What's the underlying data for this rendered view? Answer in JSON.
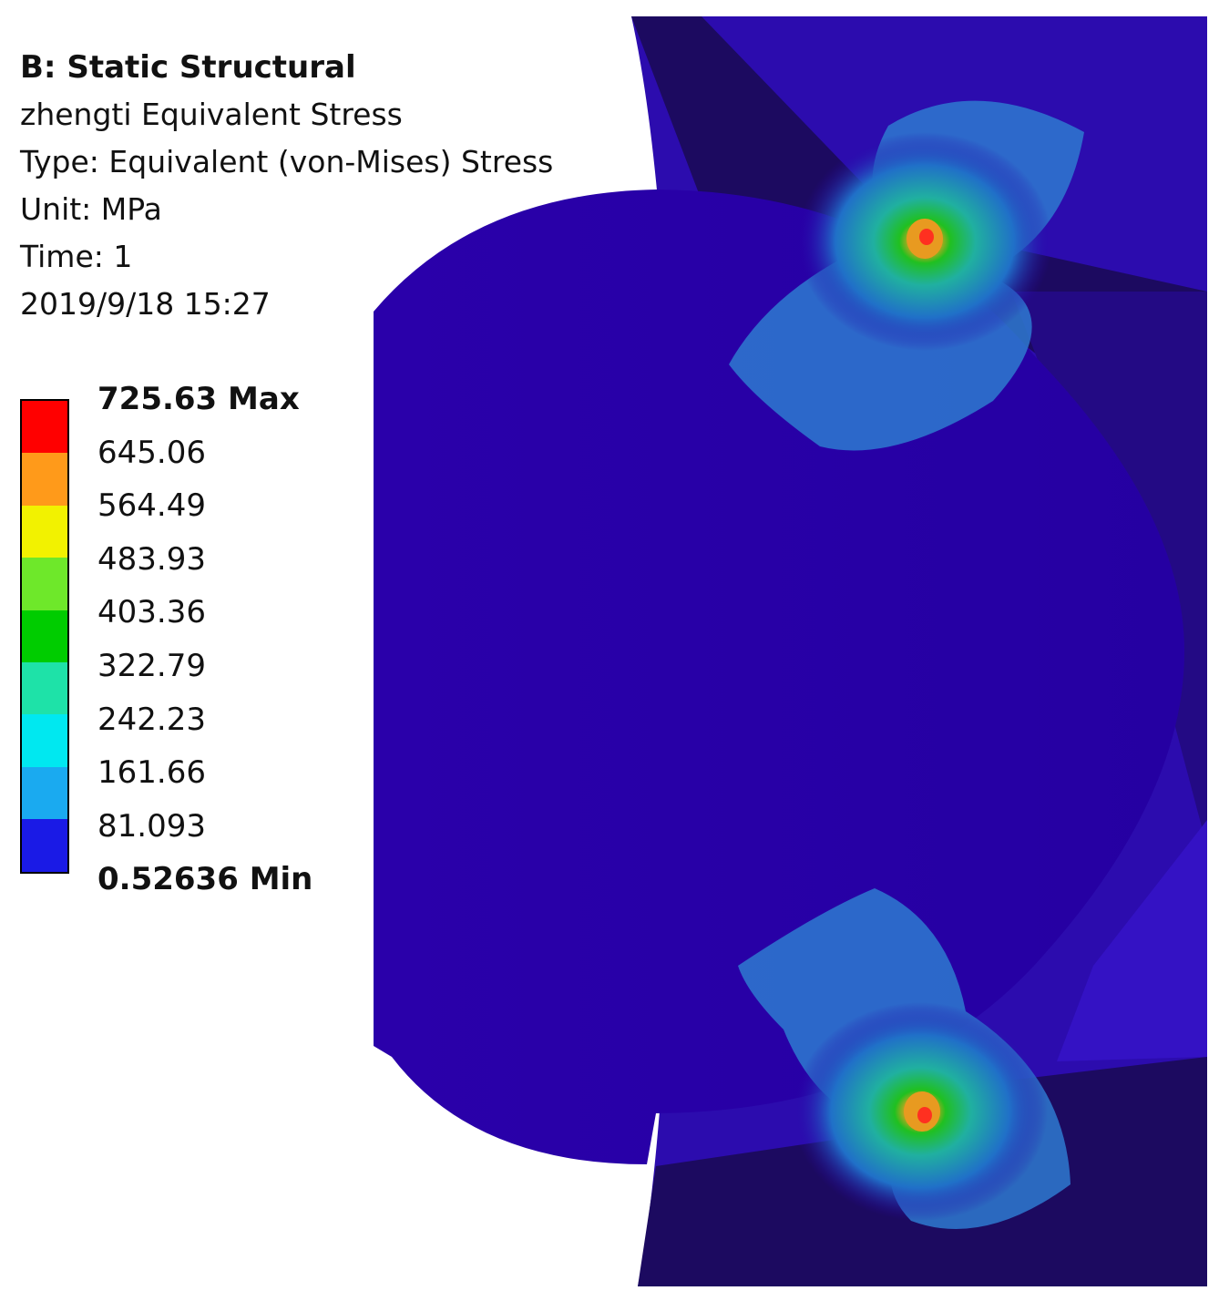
{
  "header": {
    "analysis": "B: Static Structural",
    "result_name": "zhengti Equivalent Stress",
    "type": "Type: Equivalent (von-Mises) Stress",
    "unit": "Unit: MPa",
    "time": "Time: 1",
    "timestamp": "2019/9/18 15:27"
  },
  "legend": {
    "max_label": "725.63 Max",
    "min_label": "0.52636 Min",
    "levels": [
      "645.06",
      "564.49",
      "483.93",
      "403.36",
      "322.79",
      "242.23",
      "161.66",
      "81.093"
    ],
    "colors": [
      "#ff0000",
      "#ff9a1a",
      "#f2f200",
      "#6ee82a",
      "#00cc00",
      "#1ee2a8",
      "#00e8f0",
      "#1aaaf0",
      "#1a1ae6"
    ]
  },
  "model": {
    "background_color": "#ffffff",
    "body_color": "#2800a8",
    "dark_region_color": "#1c0a60"
  }
}
